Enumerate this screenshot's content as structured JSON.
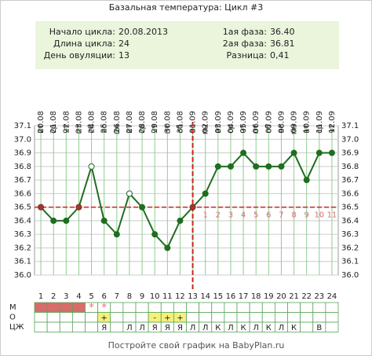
{
  "chart_data": {
    "type": "line",
    "title": "Базальная температура: Цикл #3",
    "info": [
      {
        "label": "Начало цикла:",
        "value": "20.08.2013"
      },
      {
        "label": "Длина цикла:",
        "value": "24"
      },
      {
        "label": "День овуляции:",
        "value": "13"
      },
      {
        "label": "1ая фаза:",
        "value": "36.40"
      },
      {
        "label": "2ая фаза:",
        "value": "36.81"
      },
      {
        "label": "Разница:",
        "value": "0,41"
      }
    ],
    "x": [
      1,
      2,
      3,
      4,
      5,
      6,
      7,
      8,
      9,
      10,
      11,
      12,
      13,
      14,
      15,
      16,
      17,
      18,
      19,
      20,
      21,
      22,
      23,
      24
    ],
    "dates": [
      "20.08",
      "21.08",
      "22.08",
      "23.08",
      "24.08",
      "25.08",
      "26.08",
      "27.08",
      "28.08",
      "29.08",
      "30.08",
      "31.08",
      "01.09",
      "02.09",
      "03.09",
      "04.09",
      "05.09",
      "06.09",
      "07.09",
      "08.09",
      "09.09",
      "10.09",
      "11.09",
      "12.09"
    ],
    "weekdays": [
      "вт",
      "ср",
      "чт",
      "пт",
      "сб",
      "вс",
      "пн",
      "вт",
      "ср",
      "чт",
      "пт",
      "сб",
      "вс",
      "пн",
      "вт",
      "ср",
      "чт",
      "пт",
      "сб",
      "вс",
      "пн",
      "вт",
      "ср",
      "чт"
    ],
    "values": [
      36.5,
      36.4,
      36.4,
      36.5,
      36.8,
      36.4,
      36.3,
      36.6,
      36.5,
      36.3,
      36.2,
      36.4,
      36.5,
      36.6,
      36.8,
      36.8,
      36.9,
      36.8,
      36.8,
      36.8,
      36.9,
      36.7,
      36.9,
      36.9
    ],
    "markers": [
      "cover",
      "filled",
      "filled",
      "cover",
      "hollow",
      "filled",
      "filled",
      "hollow",
      "filled",
      "filled",
      "filled",
      "filled",
      "cover",
      "filled",
      "filled",
      "filled",
      "filled",
      "filled",
      "filled",
      "filled",
      "filled",
      "filled",
      "filled",
      "filled"
    ],
    "color": "#1f6e1f",
    "cover_color": "#b03030",
    "coverline": 36.5,
    "ovulation_day": 13,
    "phase2_day_numbers": [
      1,
      2,
      3,
      4,
      5,
      6,
      7,
      8,
      9,
      10,
      11
    ],
    "ylim": [
      36.0,
      37.1
    ],
    "yticks": [
      {
        "value": 36.0,
        "label": "36.0"
      },
      36.1,
      36.2,
      36.3,
      36.4,
      36.5,
      36.6,
      36.7,
      36.8,
      36.9,
      {
        "value": 37.0,
        "label": "37.0"
      },
      37.1
    ],
    "grid": true,
    "rows": [
      {
        "label": "М",
        "cells": [
          null,
          null,
          null,
          null,
          "*",
          "*",
          null,
          null,
          null,
          null,
          null,
          null,
          null,
          null,
          null,
          null,
          null,
          null,
          null,
          null,
          null,
          null,
          null,
          null
        ],
        "fills": [
          "#d96b6b",
          "#d96b6b",
          "#d96b6b",
          "#d96b6b",
          null,
          null,
          null,
          null,
          null,
          null,
          null,
          null,
          null,
          null,
          null,
          null,
          null,
          null,
          null,
          null,
          null,
          null,
          null,
          null
        ]
      },
      {
        "label": "О",
        "cells": [
          null,
          null,
          null,
          null,
          null,
          "+",
          null,
          null,
          null,
          "-",
          "+",
          "+",
          null,
          null,
          null,
          null,
          null,
          null,
          null,
          null,
          null,
          null,
          null,
          null
        ],
        "fills": [
          null,
          null,
          null,
          null,
          null,
          "#f5f07a",
          null,
          null,
          null,
          "#f5f07a",
          "#f5f07a",
          "#f5f07a",
          null,
          null,
          null,
          null,
          null,
          null,
          null,
          null,
          null,
          null,
          null,
          null
        ]
      },
      {
        "label": "ЦЖ",
        "cells": [
          null,
          null,
          null,
          null,
          null,
          "Я",
          null,
          "Л",
          "Л",
          "Я",
          "Я",
          "Я",
          "Л",
          "Л",
          "К",
          "Л",
          "К",
          "Л",
          "К",
          "Л",
          "К",
          null,
          "В",
          null
        ],
        "fills": [
          null,
          null,
          null,
          null,
          null,
          null,
          null,
          null,
          null,
          null,
          null,
          null,
          null,
          null,
          null,
          null,
          null,
          null,
          null,
          null,
          null,
          null,
          null,
          null
        ]
      }
    ],
    "footer": "Постройте свой график на BabyPlan.ru"
  }
}
